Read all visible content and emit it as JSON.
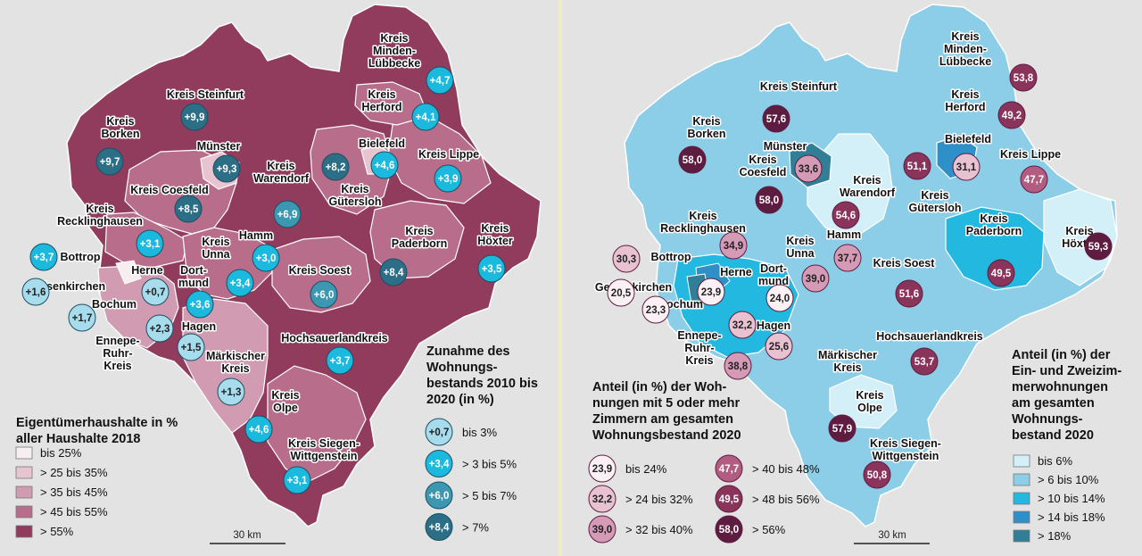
{
  "left_map": {
    "legend": {
      "title_lines": [
        "Eigentümerhaushalte in %",
        "aller Haushalte 2018"
      ],
      "classes": [
        {
          "label": "bis 25%",
          "color": "#f6eef0"
        },
        {
          "label": "> 25 bis 35%",
          "color": "#e7c4cf"
        },
        {
          "label": "> 35 bis 45%",
          "color": "#d19cb1"
        },
        {
          "label": "> 45 bis 55%",
          "color": "#b86e8a"
        },
        {
          "label": "> 55%",
          "color": "#913b5d"
        }
      ]
    },
    "bubble_legend": {
      "title_lines": [
        "Zunahme des",
        "Wohnungs-",
        "bestands 2010 bis",
        "2020 (in %)"
      ],
      "items": [
        {
          "value": "+0,7",
          "label": "bis 3%",
          "color": "#a6dcec"
        },
        {
          "value": "+3,4",
          "label": "> 3 bis 5%",
          "color": "#1cb9de"
        },
        {
          "value": "+6,0",
          "label": "> 5 bis 7%",
          "color": "#3c97b0"
        },
        {
          "value": "+8,4",
          "label": "> 7%",
          "color": "#2b6e86"
        }
      ]
    },
    "region_labels": [
      {
        "lines": [
          "Kreis",
          "Minden-",
          "Lübbecke"
        ]
      },
      {
        "lines": [
          "Kreis Steinfurt"
        ]
      },
      {
        "lines": [
          "Kreis",
          "Herford"
        ]
      },
      {
        "lines": [
          "Kreis",
          "Borken"
        ]
      },
      {
        "lines": [
          "Münster"
        ]
      },
      {
        "lines": [
          "Bielefeld"
        ]
      },
      {
        "lines": [
          "Kreis Lippe"
        ]
      },
      {
        "lines": [
          "Kreis",
          "Warendorf"
        ]
      },
      {
        "lines": [
          "Kreis",
          "Gütersloh"
        ]
      },
      {
        "lines": [
          "Kreis Coesfeld"
        ]
      },
      {
        "lines": [
          "Kreis",
          "Recklinghausen"
        ]
      },
      {
        "lines": [
          "Kreis",
          "Paderborn"
        ]
      },
      {
        "lines": [
          "Kreis",
          "Höxter"
        ]
      },
      {
        "lines": [
          "Hamm"
        ]
      },
      {
        "lines": [
          "Kreis",
          "Unna"
        ]
      },
      {
        "lines": [
          "Bottrop"
        ]
      },
      {
        "lines": [
          "Herne"
        ]
      },
      {
        "lines": [
          "Dort-",
          "mund"
        ]
      },
      {
        "lines": [
          "Gelsenkirchen"
        ]
      },
      {
        "lines": [
          "Kreis Soest"
        ]
      },
      {
        "lines": [
          "Bochum"
        ]
      },
      {
        "lines": [
          "Hagen"
        ]
      },
      {
        "lines": [
          "Ennepe-",
          "Ruhr-",
          "Kreis"
        ]
      },
      {
        "lines": [
          "Märkischer",
          "Kreis"
        ]
      },
      {
        "lines": [
          "Hochsauerlandkreis"
        ]
      },
      {
        "lines": [
          "Kreis",
          "Olpe"
        ]
      },
      {
        "lines": [
          "Kreis Siegen-",
          "Wittgenstein"
        ]
      }
    ],
    "circles": [
      {
        "value": "+4,7",
        "color": "#1cb9de"
      },
      {
        "value": "+9,9",
        "color": "#2b6e86"
      },
      {
        "value": "+4,1",
        "color": "#1cb9de"
      },
      {
        "value": "+9,7",
        "color": "#2b6e86"
      },
      {
        "value": "+9,3",
        "color": "#2b6e86"
      },
      {
        "value": "+8,2",
        "color": "#2b6e86"
      },
      {
        "value": "+4,6",
        "color": "#1cb9de"
      },
      {
        "value": "+3,9",
        "color": "#1cb9de"
      },
      {
        "value": "+8,5",
        "color": "#2b6e86"
      },
      {
        "value": "+6,9",
        "color": "#3c97b0"
      },
      {
        "value": "+3,1",
        "color": "#1cb9de"
      },
      {
        "value": "+3,0",
        "color": "#1cb9de"
      },
      {
        "value": "+3,7",
        "color": "#1cb9de"
      },
      {
        "value": "+8,4",
        "color": "#2b6e86"
      },
      {
        "value": "+3,5",
        "color": "#1cb9de"
      },
      {
        "value": "+1,6",
        "color": "#a6dcec"
      },
      {
        "value": "+0,7",
        "color": "#a6dcec"
      },
      {
        "value": "+3,4",
        "color": "#1cb9de"
      },
      {
        "value": "+6,0",
        "color": "#3c97b0"
      },
      {
        "value": "+3,6",
        "color": "#1cb9de"
      },
      {
        "value": "+1,7",
        "color": "#a6dcec"
      },
      {
        "value": "+2,3",
        "color": "#a6dcec"
      },
      {
        "value": "+1,5",
        "color": "#a6dcec"
      },
      {
        "value": "+3,7",
        "color": "#1cb9de"
      },
      {
        "value": "+1,3",
        "color": "#a6dcec"
      },
      {
        "value": "+4,6",
        "color": "#1cb9de"
      },
      {
        "value": "+3,1",
        "color": "#1cb9de"
      }
    ],
    "scale_label": "30 km"
  },
  "right_map": {
    "legend": {
      "title_lines": [
        "Anteil (in %) der",
        "Ein- und Zweizim-",
        "merwohnungen",
        "am gesamten",
        "Wohnungs-",
        "bestand 2020"
      ],
      "classes": [
        {
          "label": "bis 6%",
          "color": "#d3f0f8"
        },
        {
          "label": "> 6 bis 10%",
          "color": "#8ccde8"
        },
        {
          "label": "> 10 bis 14%",
          "color": "#22b8e0"
        },
        {
          "label": "> 14 bis 18%",
          "color": "#2f8fc9"
        },
        {
          "label": "> 18%",
          "color": "#317f97"
        }
      ]
    },
    "bubble_legend": {
      "title_lines": [
        "Anteil (in %) der Woh-",
        "nungen mit 5 oder mehr",
        "Zimmern am gesamten",
        "Wohnungsbestand 2020"
      ],
      "items": [
        {
          "value": "23,9",
          "label": "bis 24%",
          "color": "#fbf1f5"
        },
        {
          "value": "32,2",
          "label": "> 24 bis 32%",
          "color": "#e9c2d2"
        },
        {
          "value": "39,0",
          "label": "> 32 bis 40%",
          "color": "#d49ab6"
        },
        {
          "value": "47,7",
          "label": "> 40 bis 48%",
          "color": "#b25c82"
        },
        {
          "value": "49,5",
          "label": "> 48 bis 56%",
          "color": "#8a345c"
        },
        {
          "value": "58,0",
          "label": "> 56%",
          "color": "#5e1d40"
        }
      ]
    },
    "region_labels": [
      {
        "lines": [
          "Kreis",
          "Minden-",
          "Lübbecke"
        ]
      },
      {
        "lines": [
          "Kreis Steinfurt"
        ]
      },
      {
        "lines": [
          "Kreis",
          "Herford"
        ]
      },
      {
        "lines": [
          "Kreis",
          "Borken"
        ]
      },
      {
        "lines": [
          "Münster"
        ]
      },
      {
        "lines": [
          "Bielefeld"
        ]
      },
      {
        "lines": [
          "Kreis",
          "Coesfeld"
        ]
      },
      {
        "lines": [
          "Kreis",
          "Warendorf"
        ]
      },
      {
        "lines": [
          "Kreis Lippe"
        ]
      },
      {
        "lines": [
          "Kreis",
          "Gütersloh"
        ]
      },
      {
        "lines": [
          "Kreis",
          "Recklinghausen"
        ]
      },
      {
        "lines": [
          "Kreis",
          "Paderborn"
        ]
      },
      {
        "lines": [
          "Kreis",
          "Höxter"
        ]
      },
      {
        "lines": [
          "Kreis",
          "Unna"
        ]
      },
      {
        "lines": [
          "Hamm"
        ]
      },
      {
        "lines": [
          "Bottrop"
        ]
      },
      {
        "lines": [
          "Herne"
        ]
      },
      {
        "lines": [
          "Dort-",
          "mund"
        ]
      },
      {
        "lines": [
          "Kreis Soest"
        ]
      },
      {
        "lines": [
          "Gelsenkirchen"
        ]
      },
      {
        "lines": [
          "Bochum"
        ]
      },
      {
        "lines": [
          "Hagen"
        ]
      },
      {
        "lines": [
          "Ennepe-",
          "Ruhr-",
          "Kreis"
        ]
      },
      {
        "lines": [
          "Hochsauerlandkreis"
        ]
      },
      {
        "lines": [
          "Märkischer",
          "Kreis"
        ]
      },
      {
        "lines": [
          "Kreis",
          "Olpe"
        ]
      },
      {
        "lines": [
          "Kreis Siegen-",
          "Wittgenstein"
        ]
      }
    ],
    "circles": [
      {
        "value": "53,8",
        "color": "#8a345c"
      },
      {
        "value": "57,6",
        "color": "#5e1d40"
      },
      {
        "value": "49,2",
        "color": "#8a345c"
      },
      {
        "value": "58,0",
        "color": "#5e1d40"
      },
      {
        "value": "33,6",
        "color": "#d49ab6"
      },
      {
        "value": "51,1",
        "color": "#8a345c"
      },
      {
        "value": "31,1",
        "color": "#e9c2d2"
      },
      {
        "value": "58,0",
        "color": "#5e1d40"
      },
      {
        "value": "47,7",
        "color": "#b25c82"
      },
      {
        "value": "54,6",
        "color": "#8a345c"
      },
      {
        "value": "34,9",
        "color": "#d49ab6"
      },
      {
        "value": "37,7",
        "color": "#d49ab6"
      },
      {
        "value": "30,3",
        "color": "#e9c2d2"
      },
      {
        "value": "49,5",
        "color": "#8a345c"
      },
      {
        "value": "59,3",
        "color": "#5e1d40"
      },
      {
        "value": "20,5",
        "color": "#fbf1f5"
      },
      {
        "value": "23,9",
        "color": "#fbf1f5"
      },
      {
        "value": "24,0",
        "color": "#fbf1f5"
      },
      {
        "value": "39,0",
        "color": "#d49ab6"
      },
      {
        "value": "23,3",
        "color": "#fbf1f5"
      },
      {
        "value": "51,6",
        "color": "#8a345c"
      },
      {
        "value": "32,2",
        "color": "#e9c2d2"
      },
      {
        "value": "25,6",
        "color": "#e9c2d2"
      },
      {
        "value": "53,7",
        "color": "#8a345c"
      },
      {
        "value": "38,8",
        "color": "#d49ab6"
      },
      {
        "value": "57,9",
        "color": "#5e1d40"
      },
      {
        "value": "50,8",
        "color": "#8a345c"
      }
    ],
    "scale_label": "30 km"
  }
}
